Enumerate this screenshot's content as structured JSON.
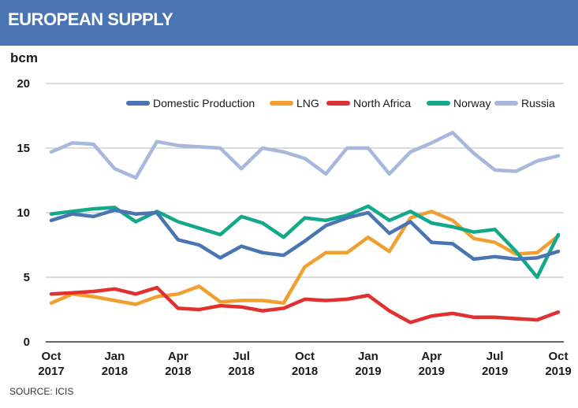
{
  "header": {
    "title": "EUROPEAN SUPPLY"
  },
  "unit_label": "bcm",
  "source": "SOURCE: ICIS",
  "chart_data": {
    "type": "line",
    "title": "EUROPEAN SUPPLY",
    "ylabel": "bcm",
    "ylim": [
      0,
      20
    ],
    "yticks": [
      0,
      5,
      10,
      15,
      20
    ],
    "grid": true,
    "legend_position": "top-right",
    "x_tick_labels": [
      {
        "index": 0,
        "month": "Oct",
        "year": "2017"
      },
      {
        "index": 3,
        "month": "Jan",
        "year": "2018"
      },
      {
        "index": 6,
        "month": "Apr",
        "year": "2018"
      },
      {
        "index": 9,
        "month": "Jul",
        "year": "2018"
      },
      {
        "index": 12,
        "month": "Oct",
        "year": "2018"
      },
      {
        "index": 15,
        "month": "Jan",
        "year": "2019"
      },
      {
        "index": 18,
        "month": "Apr",
        "year": "2019"
      },
      {
        "index": 21,
        "month": "Jul",
        "year": "2019"
      },
      {
        "index": 24,
        "month": "Oct",
        "year": "2019"
      }
    ],
    "x": [
      "Oct 2017",
      "Nov 2017",
      "Dec 2017",
      "Jan 2018",
      "Feb 2018",
      "Mar 2018",
      "Apr 2018",
      "May 2018",
      "Jun 2018",
      "Jul 2018",
      "Aug 2018",
      "Sep 2018",
      "Oct 2018",
      "Nov 2018",
      "Dec 2018",
      "Jan 2019",
      "Feb 2019",
      "Mar 2019",
      "Apr 2019",
      "May 2019",
      "Jun 2019",
      "Jul 2019",
      "Aug 2019",
      "Sep 2019",
      "Oct 2019"
    ],
    "series": [
      {
        "name": "Domestic Production",
        "color": "#4a74b2",
        "values": [
          9.4,
          9.9,
          9.7,
          10.2,
          9.9,
          10.0,
          7.9,
          7.5,
          6.5,
          7.4,
          6.9,
          6.7,
          7.8,
          9.0,
          9.6,
          10.0,
          8.4,
          9.3,
          7.7,
          7.6,
          6.4,
          6.6,
          6.4,
          6.5,
          7.0
        ]
      },
      {
        "name": "LNG",
        "color": "#f0a030",
        "values": [
          3.0,
          3.7,
          3.5,
          3.2,
          2.9,
          3.5,
          3.7,
          4.3,
          3.1,
          3.2,
          3.2,
          3.0,
          5.8,
          6.9,
          6.9,
          8.1,
          7.0,
          9.6,
          10.1,
          9.4,
          8.0,
          7.7,
          6.8,
          6.9,
          8.2
        ]
      },
      {
        "name": "North Africa",
        "color": "#e03030",
        "values": [
          3.7,
          3.8,
          3.9,
          4.1,
          3.7,
          4.2,
          2.6,
          2.5,
          2.8,
          2.7,
          2.4,
          2.6,
          3.3,
          3.2,
          3.3,
          3.6,
          2.4,
          1.5,
          2.0,
          2.2,
          1.9,
          1.9,
          1.8,
          1.7,
          2.3
        ]
      },
      {
        "name": "Norway",
        "color": "#12a88a",
        "values": [
          9.9,
          10.1,
          10.3,
          10.4,
          9.3,
          10.1,
          9.3,
          8.8,
          8.3,
          9.7,
          9.2,
          8.1,
          9.6,
          9.4,
          9.8,
          10.5,
          9.4,
          10.1,
          9.2,
          8.9,
          8.5,
          8.7,
          7.0,
          5.0,
          8.3
        ]
      },
      {
        "name": "Russia",
        "color": "#a8b8dc",
        "values": [
          14.7,
          15.4,
          15.3,
          13.4,
          12.7,
          15.5,
          15.2,
          15.1,
          15.0,
          13.4,
          15.0,
          14.7,
          14.2,
          13.0,
          15.0,
          15.0,
          13.0,
          14.7,
          15.4,
          16.2,
          14.6,
          13.3,
          13.2,
          14.0,
          14.4
        ]
      }
    ]
  }
}
